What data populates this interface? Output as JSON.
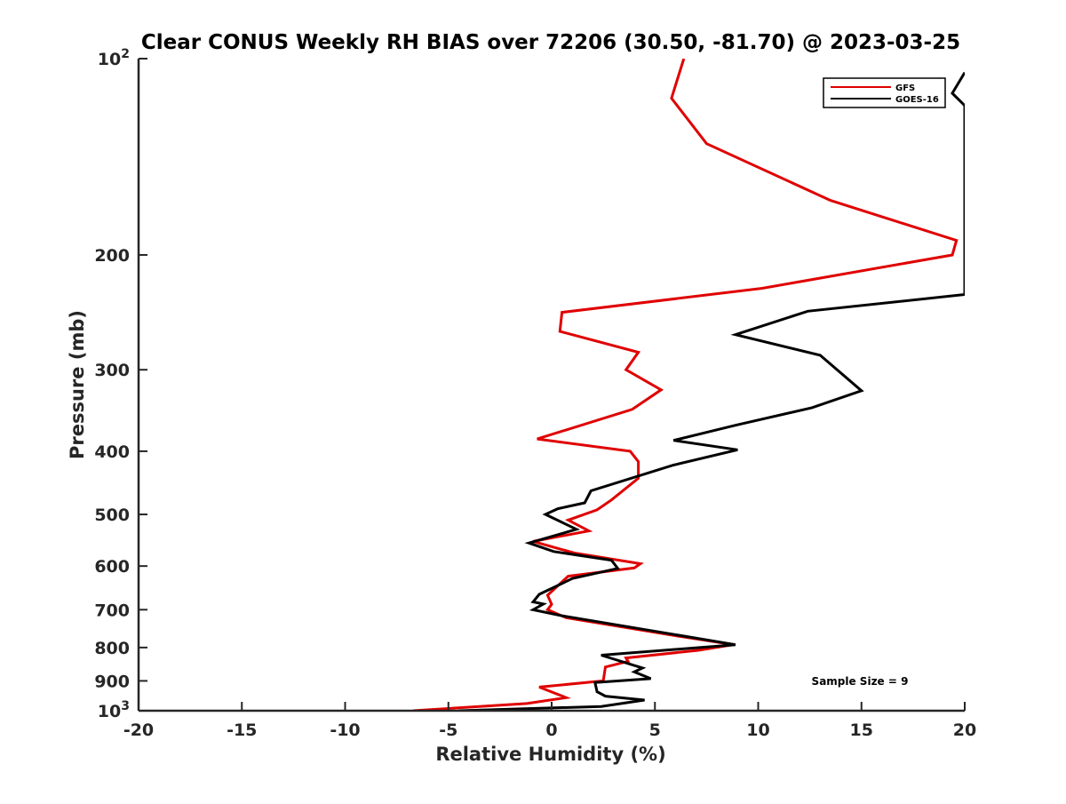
{
  "chart_data": {
    "type": "line",
    "title": "Clear CONUS Weekly RH BIAS over 72206 (30.50, -81.70) @ 2023-03-25",
    "xlabel": "Relative Humidity (%)",
    "ylabel": "Pressure (mb)",
    "xlim": [
      -20,
      20
    ],
    "ylim": [
      100,
      1000
    ],
    "y_scale": "log",
    "y_reversed": true,
    "grid": false,
    "legend_position": "top-right",
    "annotation": "Sample Size = 9",
    "x_ticks": [
      -20,
      -15,
      -10,
      -5,
      0,
      5,
      10,
      15,
      20
    ],
    "x_tick_labels": [
      "-20",
      "-15",
      "-10",
      "-5",
      "0",
      "5",
      "10",
      "15",
      "20"
    ],
    "y_ticks": [
      {
        "value": 100,
        "base": "10",
        "exp": "2"
      },
      {
        "value": 200,
        "label": "200"
      },
      {
        "value": 300,
        "label": "300"
      },
      {
        "value": 400,
        "label": "400"
      },
      {
        "value": 500,
        "label": "500"
      },
      {
        "value": 600,
        "label": "600"
      },
      {
        "value": 700,
        "label": "700"
      },
      {
        "value": 800,
        "label": "800"
      },
      {
        "value": 900,
        "label": "900"
      },
      {
        "value": 1000,
        "base": "10",
        "exp": "3"
      }
    ],
    "series": [
      {
        "name": "GFS",
        "color": "#e00000",
        "points": [
          [
            6.4,
            100
          ],
          [
            5.8,
            115
          ],
          [
            7.5,
            135
          ],
          [
            13.5,
            165
          ],
          [
            19.6,
            190
          ],
          [
            19.4,
            200
          ],
          [
            10.2,
            225
          ],
          [
            0.5,
            245
          ],
          [
            0.4,
            262
          ],
          [
            4.2,
            282
          ],
          [
            3.6,
            300
          ],
          [
            5.3,
            322
          ],
          [
            3.9,
            345
          ],
          [
            -0.7,
            383
          ],
          [
            3.8,
            400
          ],
          [
            4.2,
            415
          ],
          [
            4.2,
            440
          ],
          [
            2.9,
            475
          ],
          [
            2.2,
            492
          ],
          [
            0.8,
            510
          ],
          [
            1.8,
            530
          ],
          [
            -0.9,
            550
          ],
          [
            1.1,
            573
          ],
          [
            4.3,
            595
          ],
          [
            4.0,
            604
          ],
          [
            0.8,
            622
          ],
          [
            -0.2,
            665
          ],
          [
            0.0,
            687
          ],
          [
            -0.2,
            700
          ],
          [
            0.7,
            720
          ],
          [
            6.3,
            770
          ],
          [
            8.8,
            792
          ],
          [
            7.1,
            808
          ],
          [
            3.6,
            830
          ],
          [
            3.7,
            840
          ],
          [
            2.6,
            857
          ],
          [
            2.5,
            900
          ],
          [
            -0.6,
            920
          ],
          [
            0.7,
            955
          ],
          [
            -1.2,
            975
          ],
          [
            -6.7,
            1000
          ]
        ]
      },
      {
        "name": "GOES-16",
        "color": "#000000",
        "points": [
          [
            20.0,
            105
          ],
          [
            19.4,
            113
          ],
          [
            20.0,
            118
          ],
          [
            20.0,
            230
          ],
          [
            12.4,
            244
          ],
          [
            8.9,
            265
          ],
          [
            13.0,
            285
          ],
          [
            15.0,
            323
          ],
          [
            12.6,
            343
          ],
          [
            8.9,
            365
          ],
          [
            5.9,
            385
          ],
          [
            9.0,
            398
          ],
          [
            5.9,
            420
          ],
          [
            1.9,
            460
          ],
          [
            1.6,
            480
          ],
          [
            0.3,
            490
          ],
          [
            -0.3,
            500
          ],
          [
            1.2,
            527
          ],
          [
            -1.1,
            553
          ],
          [
            0.1,
            570
          ],
          [
            2.9,
            588
          ],
          [
            3.2,
            605
          ],
          [
            1.0,
            627
          ],
          [
            -0.6,
            663
          ],
          [
            -0.9,
            681
          ],
          [
            -0.4,
            686
          ],
          [
            -0.9,
            700
          ],
          [
            0.5,
            715
          ],
          [
            8.9,
            792
          ],
          [
            2.4,
            822
          ],
          [
            4.4,
            860
          ],
          [
            4.0,
            872
          ],
          [
            4.8,
            893
          ],
          [
            2.1,
            905
          ],
          [
            2.2,
            935
          ],
          [
            2.6,
            950
          ],
          [
            4.5,
            963
          ],
          [
            2.4,
            985
          ],
          [
            -4.5,
            1000
          ]
        ]
      }
    ]
  }
}
